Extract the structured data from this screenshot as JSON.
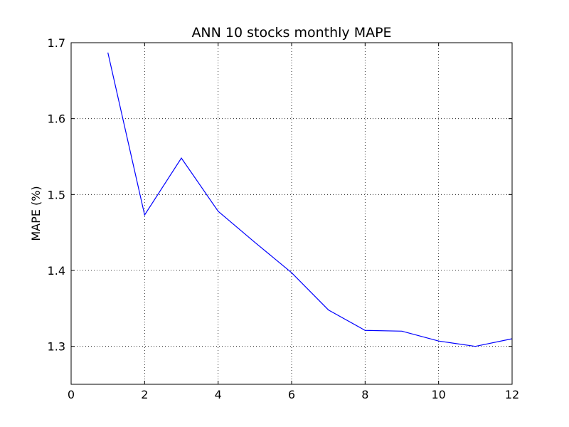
{
  "chart_data": {
    "type": "line",
    "title": "ANN 10 stocks monthly MAPE",
    "xlabel": "",
    "ylabel": "MAPE (%)",
    "xlim": [
      0,
      12
    ],
    "ylim": [
      1.25,
      1.7
    ],
    "xticks": [
      0,
      2,
      4,
      6,
      8,
      10,
      12
    ],
    "xtick_labels": [
      "0",
      "2",
      "4",
      "6",
      "8",
      "10",
      "12"
    ],
    "yticks": [
      1.3,
      1.4,
      1.5,
      1.6,
      1.7
    ],
    "ytick_labels": [
      "1.3",
      "1.4",
      "1.5",
      "1.6",
      "1.7"
    ],
    "grid": true,
    "series": [
      {
        "color": "#0000ff",
        "x": [
          1,
          2,
          3,
          4,
          5,
          6,
          7,
          8,
          9,
          10,
          11,
          12
        ],
        "y": [
          1.687,
          1.473,
          1.548,
          1.478,
          1.437,
          1.397,
          1.348,
          1.321,
          1.32,
          1.307,
          1.3,
          1.31
        ]
      }
    ]
  }
}
